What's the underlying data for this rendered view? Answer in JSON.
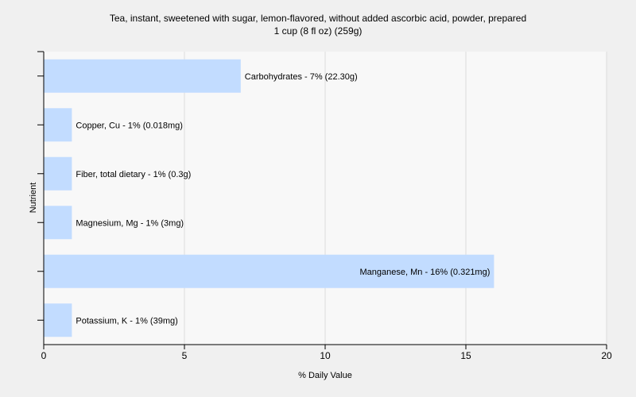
{
  "chart_data": {
    "type": "bar",
    "orientation": "horizontal",
    "title": "Tea, instant, sweetened with sugar, lemon-flavored, without added ascorbic acid, powder, prepared",
    "subtitle": "1 cup (8 fl oz) (259g)",
    "xlabel": "% Daily Value",
    "ylabel": "Nutrient",
    "xlim": [
      0,
      20
    ],
    "xticks": [
      0,
      5,
      10,
      15,
      20
    ],
    "grid": true,
    "bar_color": "#c2dcff",
    "categories": [
      "Carbohydrates",
      "Copper, Cu",
      "Fiber, total dietary",
      "Magnesium, Mg",
      "Manganese, Mn",
      "Potassium, K"
    ],
    "values": [
      7,
      1,
      1,
      1,
      16,
      1
    ],
    "labels": [
      "Carbohydrates - 7% (22.30g)",
      "Copper, Cu - 1% (0.018mg)",
      "Fiber, total dietary - 1% (0.3g)",
      "Magnesium, Mg - 1% (3mg)",
      "Manganese, Mn - 16% (0.321mg)",
      "Potassium, K - 1% (39mg)"
    ]
  }
}
